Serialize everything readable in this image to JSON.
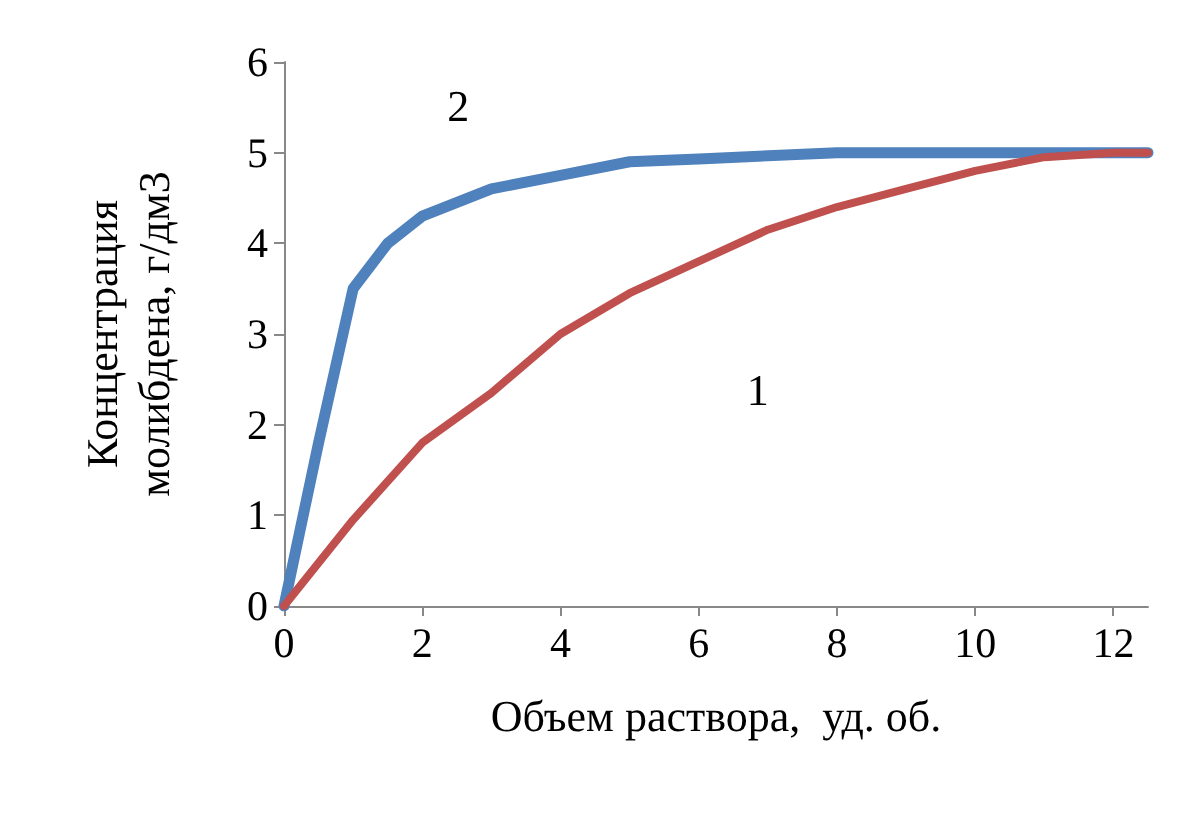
{
  "chart_data": {
    "type": "line",
    "xlabel": "Объем раствора,  уд. об.",
    "ylabel": "Концентрация\nмолибдена, г/дм3",
    "xlim": [
      0,
      12.5
    ],
    "xticks": [
      0,
      2,
      4,
      6,
      8,
      10,
      12
    ],
    "ylim": [
      0,
      6
    ],
    "yticks": [
      0,
      1,
      2,
      3,
      4,
      5,
      6
    ],
    "grid": false,
    "marker": "none",
    "line_style": "solid",
    "series": [
      {
        "name": "1",
        "color": "#c0504d",
        "x": [
          0,
          1,
          2,
          3,
          4,
          5,
          6,
          7,
          8,
          9,
          10,
          11,
          12,
          12.5
        ],
        "values": [
          0,
          0.95,
          1.8,
          2.35,
          3.0,
          3.45,
          3.8,
          4.15,
          4.4,
          4.6,
          4.8,
          4.95,
          5,
          5
        ]
      },
      {
        "name": "2",
        "color": "#4f81bd",
        "x": [
          0,
          0.5,
          1,
          1.5,
          2,
          3,
          4,
          5,
          6,
          8,
          10,
          12.5
        ],
        "values": [
          0,
          1.8,
          3.5,
          4.0,
          4.3,
          4.6,
          4.75,
          4.9,
          4.93,
          5,
          5,
          5
        ]
      }
    ]
  }
}
